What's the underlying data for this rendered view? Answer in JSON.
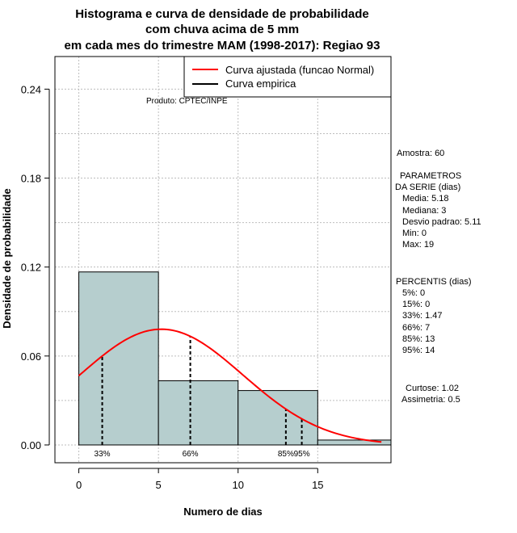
{
  "chart_data": {
    "type": "bar",
    "title": [
      "Histograma e curva de densidade de probabilidade",
      "com chuva acima de 5 mm",
      "em cada mes do trimestre MAM (1998-2017): Regiao 93"
    ],
    "xlabel": "Numero de dias",
    "ylabel": "Densidade de probabilidade",
    "xlim": [
      -1.5,
      19.6
    ],
    "ylim": [
      -0.012,
      0.262
    ],
    "xticks": [
      0,
      5,
      10,
      15
    ],
    "yticks": [
      0.0,
      0.06,
      0.12,
      0.18,
      0.24
    ],
    "ytick_labels": [
      "0.00",
      "0.06",
      "0.12",
      "0.18",
      "0.24"
    ],
    "grid": true,
    "bins": [
      {
        "x0": 0,
        "x1": 5,
        "density": 0.1167
      },
      {
        "x0": 5,
        "x1": 10,
        "density": 0.0433
      },
      {
        "x0": 10,
        "x1": 15,
        "density": 0.0367
      },
      {
        "x0": 15,
        "x1": 20,
        "density": 0.0033
      }
    ],
    "normal_fit": {
      "mean": 5.18,
      "sd": 5.11,
      "x_from": 0,
      "x_to": 19
    },
    "percentile_lines": [
      {
        "x": 1.47,
        "label": "33%"
      },
      {
        "x": 7,
        "label": "66%"
      },
      {
        "x": 13,
        "label": "85%"
      },
      {
        "x": 14,
        "label": "95%"
      }
    ],
    "legend": {
      "position": "top-right",
      "entries": [
        {
          "label": "Curva ajustada (funcao Normal)",
          "color": "#ff0000"
        },
        {
          "label": "Curva empirica",
          "color": "#000000"
        }
      ]
    },
    "colors": {
      "bar_fill": "#b6cece",
      "curve": "#ff0000",
      "grid": "#bdbdbd"
    }
  },
  "product_label": "Produto: CPTEC/INPE",
  "stats": {
    "amostra": "Amostra: 60",
    "param_title1": "PARAMETROS",
    "param_title2": "DA SERIE (dias)",
    "media": "Media: 5.18",
    "mediana": "Mediana: 3",
    "desvio": "Desvio padrao: 5.11",
    "min": "Min: 0",
    "max": "Max: 19",
    "percentis_title": "PERCENTIS (dias)",
    "p5": "5%: 0",
    "p15": "15%: 0",
    "p33": "33%: 1.47",
    "p66": "66%: 7",
    "p85": "85%: 13",
    "p95": "95%: 14",
    "curtose": "Curtose: 1.02",
    "assimetria": "Assimetria: 0.5"
  }
}
